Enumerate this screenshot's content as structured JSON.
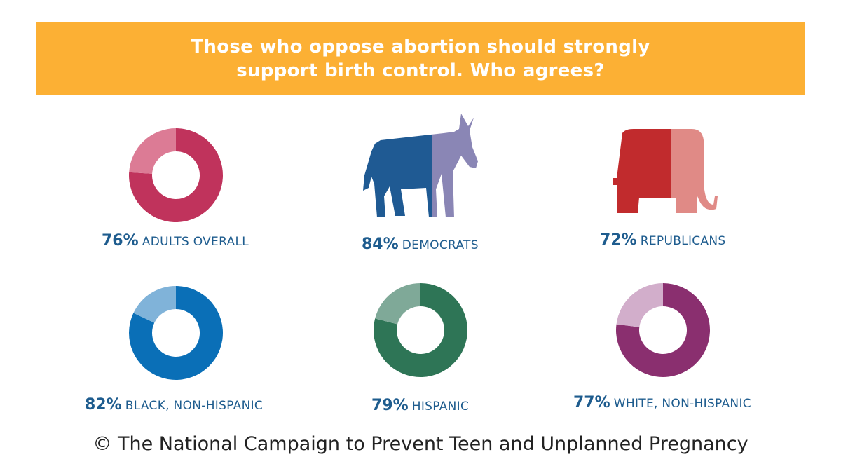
{
  "header": {
    "title": "Those who oppose abortion should strongly support birth control. Who agrees?"
  },
  "chart_data": [
    {
      "type": "pie",
      "subtype": "donut",
      "label_value": "76%",
      "label_name": "ADULTS OVERALL",
      "value": 76,
      "color": "#c0335c",
      "rest_color": "#dc7b95"
    },
    {
      "type": "pie",
      "subtype": "pictogram-donkey",
      "label_value": "84%",
      "label_name": "DEMOCRATS",
      "value": 84,
      "color": "#1f5a93",
      "rest_color": "#8a86b5"
    },
    {
      "type": "pie",
      "subtype": "pictogram-elephant",
      "label_value": "72%",
      "label_name": "REPUBLICANS",
      "value": 72,
      "color": "#c12b2d",
      "rest_color": "#e08a86"
    },
    {
      "type": "pie",
      "subtype": "donut",
      "label_value": "82%",
      "label_name": "BLACK, NON-HISPANIC",
      "value": 82,
      "color": "#0a6fb7",
      "rest_color": "#80b3d9"
    },
    {
      "type": "pie",
      "subtype": "donut",
      "label_value": "79%",
      "label_name": "HISPANIC",
      "value": 79,
      "color": "#2e7556",
      "rest_color": "#7fa998"
    },
    {
      "type": "pie",
      "subtype": "donut",
      "label_value": "77%",
      "label_name": "WHITE, NON-HISPANIC",
      "value": 77,
      "color": "#8a2f6f",
      "rest_color": "#d2aecb"
    }
  ],
  "footer": {
    "credit": "© The National Campaign to Prevent Teen and Unplanned Pregnancy"
  }
}
